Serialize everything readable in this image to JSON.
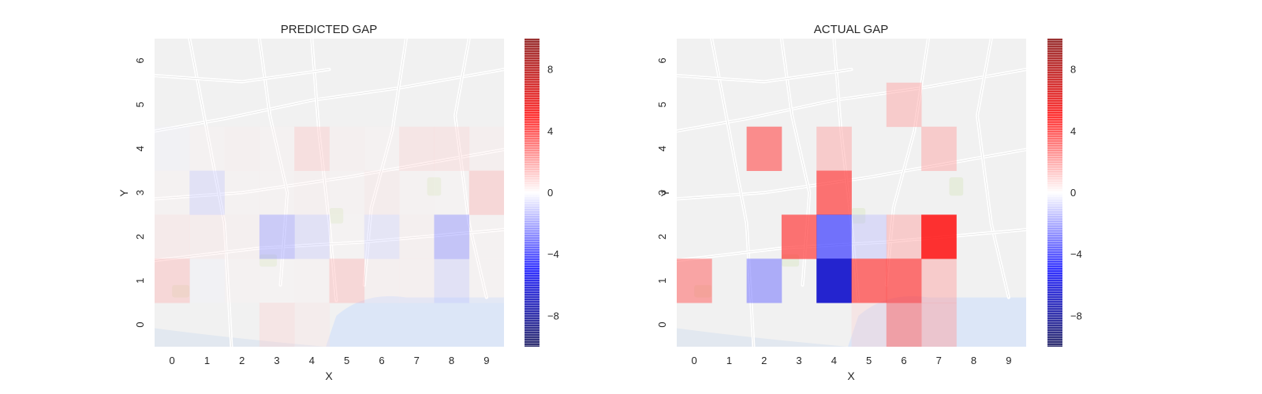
{
  "chart_data": [
    {
      "type": "heatmap",
      "title": "PREDICTED GAP",
      "xlabel": "X",
      "ylabel": "Y",
      "x_ticks": [
        "0",
        "1",
        "2",
        "3",
        "4",
        "5",
        "6",
        "7",
        "8",
        "9"
      ],
      "y_ticks": [
        "0",
        "1",
        "2",
        "3",
        "4",
        "5",
        "6"
      ],
      "xlim": [
        -0.5,
        9.5
      ],
      "ylim": [
        -0.5,
        6.5
      ],
      "colormap": "seismic",
      "vmin": -10,
      "vmax": 10,
      "colorbar_ticks": [
        8,
        4,
        0,
        -4,
        -8
      ],
      "background": "street map",
      "grid": false,
      "rows_top_to_bottom": [
        [
          0,
          0,
          0,
          0,
          0,
          0,
          0,
          0,
          0,
          0
        ],
        [
          0,
          0,
          0,
          0,
          0,
          0,
          0,
          0,
          0,
          0
        ],
        [
          -0.3,
          0.3,
          0.4,
          0.3,
          1.3,
          0.4,
          0.3,
          1.0,
          1.0,
          0.5
        ],
        [
          0.3,
          -1.2,
          0.3,
          0.3,
          0.4,
          0.3,
          0.6,
          0.3,
          0.2,
          1.6
        ],
        [
          0.8,
          0.6,
          0.4,
          -2.0,
          -1.2,
          0.2,
          -1.0,
          0.4,
          -2.2,
          0.3
        ],
        [
          1.6,
          -0.3,
          0.3,
          0.2,
          0.3,
          1.6,
          0.4,
          0.4,
          -1.2,
          0.3
        ],
        [
          0,
          0,
          0,
          1.0,
          0.6,
          0,
          0,
          0,
          0,
          0
        ]
      ]
    },
    {
      "type": "heatmap",
      "title": "ACTUAL GAP",
      "xlabel": "X",
      "ylabel": "Y",
      "x_ticks": [
        "0",
        "1",
        "2",
        "3",
        "4",
        "5",
        "6",
        "7",
        "8",
        "9"
      ],
      "y_ticks": [
        "0",
        "1",
        "2",
        "3",
        "4",
        "5",
        "6"
      ],
      "xlim": [
        -0.5,
        9.5
      ],
      "ylim": [
        -0.5,
        6.5
      ],
      "colormap": "seismic",
      "vmin": -10,
      "vmax": 10,
      "colorbar_ticks": [
        8,
        4,
        0,
        -4,
        -8
      ],
      "background": "street map",
      "grid": false,
      "rows_top_to_bottom": [
        [
          0,
          0,
          0,
          0,
          0,
          0,
          0,
          0,
          0,
          0
        ],
        [
          0,
          0,
          0,
          0,
          0,
          0,
          2.0,
          0,
          0,
          0
        ],
        [
          0,
          0,
          3.5,
          0,
          2.0,
          0,
          0,
          2.0,
          0,
          0
        ],
        [
          0,
          0,
          0,
          0,
          4.0,
          0,
          0,
          0,
          0,
          0
        ],
        [
          0,
          0,
          0,
          4.0,
          -4.0,
          -1.5,
          2.0,
          5.0,
          0,
          0
        ],
        [
          3.0,
          0,
          -2.8,
          0,
          -6.5,
          4.0,
          4.0,
          2.0,
          0,
          0
        ],
        [
          0,
          0,
          0,
          0,
          0,
          1.0,
          3.0,
          2.0,
          0,
          0
        ]
      ]
    }
  ]
}
